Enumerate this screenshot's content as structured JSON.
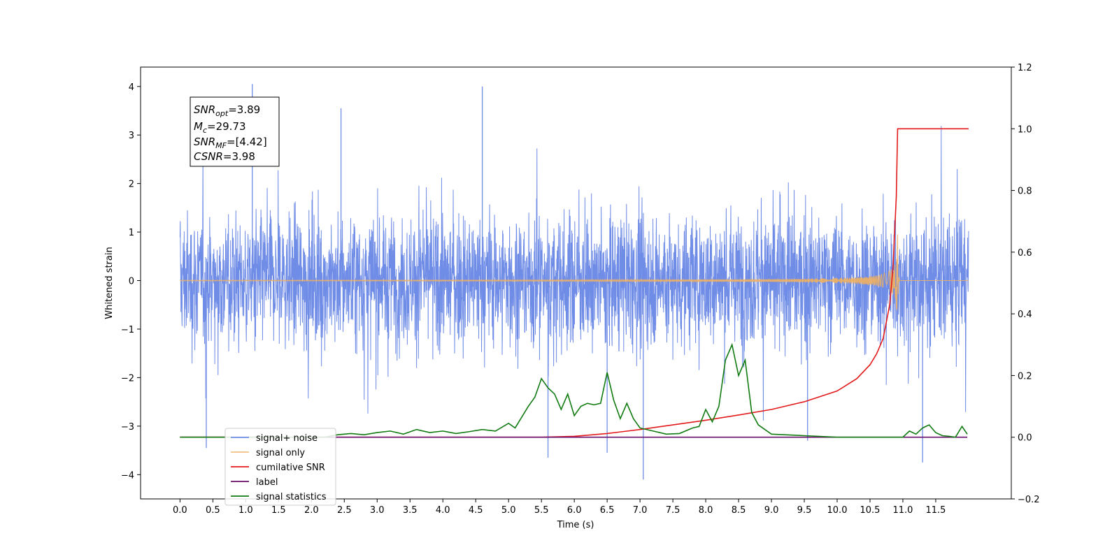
{
  "chart_data": {
    "type": "line",
    "title": "",
    "xlabel": "Time (s)",
    "ylabel": "Whitened strain",
    "y2label": "",
    "xlim": [
      -0.6,
      12.65
    ],
    "ylim": [
      -4.5,
      4.4
    ],
    "y2lim": [
      -0.2,
      1.2
    ],
    "xticks": [
      0.0,
      0.5,
      1.0,
      1.5,
      2.0,
      2.5,
      3.0,
      3.5,
      4.0,
      4.5,
      5.0,
      5.5,
      6.0,
      6.5,
      7.0,
      7.5,
      8.0,
      8.5,
      9.0,
      9.5,
      10.0,
      10.5,
      11.0,
      11.5
    ],
    "xtick_labels": [
      "0.0",
      "0.5",
      "1.0",
      "1.5",
      "2.0",
      "2.5",
      "3.0",
      "3.5",
      "4.0",
      "4.5",
      "5.0",
      "5.5",
      "6.0",
      "6.5",
      "7.0",
      "7.5",
      "8.0",
      "8.5",
      "9.0",
      "9.5",
      "10.0",
      "10.5",
      "11.0",
      "11.5"
    ],
    "yticks": [
      -4,
      -3,
      -2,
      -1,
      0,
      1,
      2,
      3,
      4
    ],
    "ytick_labels": [
      "−4",
      "−3",
      "−2",
      "−1",
      "0",
      "1",
      "2",
      "3",
      "4"
    ],
    "y2ticks": [
      -0.2,
      0.0,
      0.2,
      0.4,
      0.6,
      0.8,
      1.0,
      1.2
    ],
    "y2tick_labels": [
      "−0.2",
      "0.0",
      "0.2",
      "0.4",
      "0.6",
      "0.8",
      "1.0",
      "1.2"
    ],
    "legend_position": "lower-left",
    "grid": false,
    "series": [
      {
        "name": "signal+ noise",
        "axis": "left",
        "color": "#6f8ce6",
        "kind": "noise",
        "x_range": [
          0.0,
          12.0
        ],
        "typical_envelope": [
          -1.5,
          2.3
        ],
        "notable_peaks": [
          [
            1.1,
            4.05
          ],
          [
            4.6,
            4.0
          ],
          [
            2.45,
            3.55
          ],
          [
            7.05,
            -4.1
          ],
          [
            0.4,
            -3.45
          ],
          [
            5.6,
            -3.65
          ],
          [
            6.5,
            -3.55
          ],
          [
            11.3,
            -3.75
          ],
          [
            9.55,
            -3.3
          ]
        ]
      },
      {
        "name": "signal only",
        "axis": "left",
        "color": "#f0b060",
        "kind": "chirp",
        "x_range": [
          0.0,
          12.0
        ],
        "merger_time": 10.92,
        "peak_amplitude": 0.95
      },
      {
        "name": "cumilative SNR",
        "axis": "right",
        "color": "#e31a1c",
        "x": [
          0.0,
          5.5,
          6.0,
          6.5,
          7.0,
          7.5,
          8.0,
          8.5,
          9.0,
          9.5,
          10.0,
          10.3,
          10.5,
          10.6,
          10.7,
          10.8,
          10.85,
          10.9,
          10.92,
          11.0,
          11.5,
          12.0
        ],
        "values": [
          0.0,
          0.0,
          0.003,
          0.012,
          0.025,
          0.04,
          0.055,
          0.072,
          0.09,
          0.115,
          0.15,
          0.19,
          0.235,
          0.27,
          0.32,
          0.43,
          0.55,
          0.78,
          1.0,
          1.0,
          1.0,
          1.0
        ]
      },
      {
        "name": "label",
        "axis": "right",
        "color": "#6a0d6a",
        "x": [
          0.0,
          11.98
        ],
        "values": [
          0.0,
          0.0
        ]
      },
      {
        "name": "signal statistics",
        "axis": "right",
        "color": "#117a11",
        "x": [
          0.0,
          2.2,
          2.4,
          2.6,
          2.8,
          3.0,
          3.2,
          3.4,
          3.6,
          3.8,
          4.0,
          4.2,
          4.4,
          4.6,
          4.8,
          5.0,
          5.1,
          5.3,
          5.4,
          5.5,
          5.6,
          5.7,
          5.8,
          5.9,
          6.0,
          6.1,
          6.2,
          6.3,
          6.4,
          6.5,
          6.6,
          6.7,
          6.8,
          6.9,
          7.0,
          7.2,
          7.4,
          7.6,
          7.8,
          7.9,
          8.0,
          8.1,
          8.2,
          8.3,
          8.4,
          8.5,
          8.6,
          8.7,
          8.8,
          9.0,
          9.5,
          10.0,
          10.5,
          11.0,
          11.1,
          11.2,
          11.3,
          11.4,
          11.5,
          11.6,
          11.7,
          11.8,
          11.9,
          11.98
        ],
        "values": [
          0.0,
          0.0,
          0.008,
          0.012,
          0.008,
          0.015,
          0.02,
          0.01,
          0.025,
          0.015,
          0.02,
          0.012,
          0.018,
          0.025,
          0.02,
          0.045,
          0.03,
          0.1,
          0.13,
          0.19,
          0.16,
          0.14,
          0.09,
          0.14,
          0.07,
          0.1,
          0.11,
          0.105,
          0.11,
          0.21,
          0.12,
          0.06,
          0.11,
          0.06,
          0.03,
          0.02,
          0.01,
          0.012,
          0.03,
          0.035,
          0.09,
          0.05,
          0.1,
          0.25,
          0.3,
          0.2,
          0.25,
          0.08,
          0.04,
          0.01,
          0.005,
          0.0,
          0.0,
          0.0,
          0.02,
          0.01,
          0.03,
          0.04,
          0.015,
          0.005,
          0.003,
          0.0,
          0.035,
          0.01
        ]
      }
    ],
    "annotations": [
      {
        "sym": "SNR",
        "sub": "opt",
        "value": "=3.89"
      },
      {
        "sym": "M",
        "sub": "c",
        "value": "=29.73"
      },
      {
        "sym": "SNR",
        "sub": "MF",
        "value": "=[4.42]"
      },
      {
        "sym": "CSNR",
        "sub": "",
        "value": "=3.98"
      }
    ]
  }
}
